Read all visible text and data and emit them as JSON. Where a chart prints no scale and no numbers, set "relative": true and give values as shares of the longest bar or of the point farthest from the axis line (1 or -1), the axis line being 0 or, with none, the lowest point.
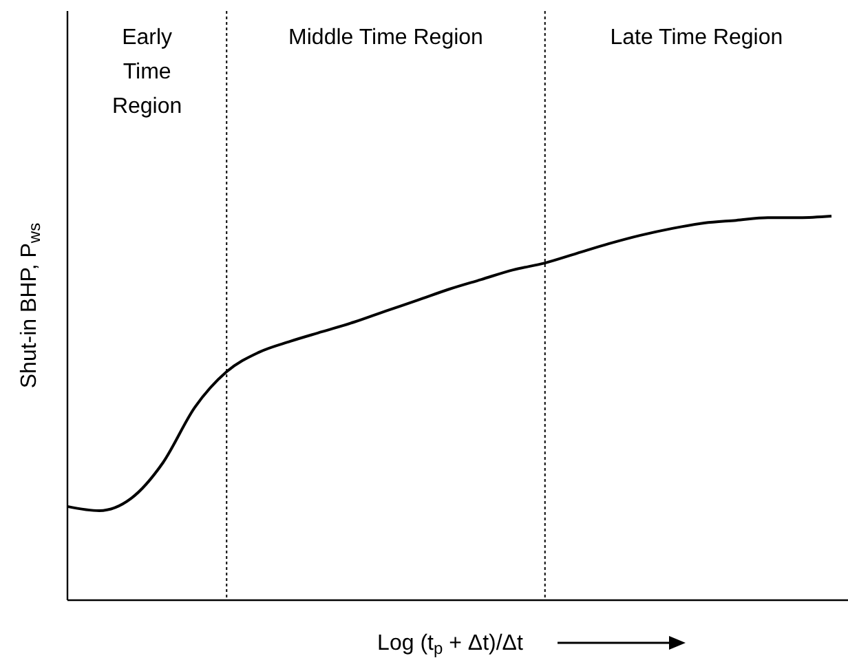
{
  "chart_data": {
    "type": "line",
    "relative": true,
    "xlabel": "Log (t$_{p}$ + Δt)/Δt",
    "ylabel": "Shut-in BHP, P$_{ws}$",
    "categories": [
      null,
      null,
      null,
      null,
      null,
      null,
      null,
      null,
      null,
      null,
      null,
      null,
      null,
      null,
      null,
      null,
      null,
      null,
      null,
      null,
      null,
      null,
      null,
      null,
      null
    ],
    "series": [
      {
        "color": "#000000",
        "values": [
          0.244,
          0.233,
          0.265,
          0.358,
          0.502,
          0.595,
          0.645,
          0.674,
          0.699,
          0.724,
          0.753,
          0.781,
          0.81,
          0.835,
          0.86,
          0.878,
          0.903,
          0.928,
          0.95,
          0.968,
          0.982,
          0.989,
          0.996,
          0.996,
          1
        ]
      }
    ],
    "annotations": [
      "Early Time Region",
      "Middle Time Region",
      "Late Time Region"
    ],
    "marker": "none",
    "line_style": "solid"
  }
}
